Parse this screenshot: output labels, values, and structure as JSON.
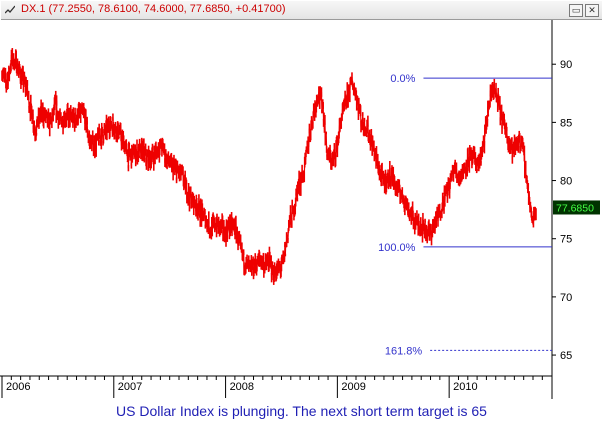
{
  "window": {
    "title": "DX.1 (77.2550, 78.6100, 74.6000, 77.6850, +0.41700)",
    "minimize_glyph": "▭",
    "close_glyph": "✕"
  },
  "caption": "US Dollar Index is plunging. The next short term target is 65",
  "colors": {
    "price": "#ee0000",
    "fib": "#3333cc",
    "fib_text": "#3333cc",
    "price_box": "#003300",
    "price_box_text": "#44ff44"
  },
  "chart_data": {
    "type": "line",
    "title": "",
    "xlabel": "",
    "ylabel": "",
    "ylim": [
      63.2,
      93.8
    ],
    "xlim": [
      2006.0,
      2010.92
    ],
    "y_ticks": [
      65,
      70,
      75,
      80,
      85,
      90
    ],
    "x_ticks": [
      {
        "value": 2006.0,
        "label": "2006"
      },
      {
        "value": 2007.0,
        "label": "2007"
      },
      {
        "value": 2008.0,
        "label": "2008"
      },
      {
        "value": 2009.0,
        "label": "2009"
      },
      {
        "value": 2010.0,
        "label": "2010"
      }
    ],
    "grid": false,
    "current_price": {
      "value": 77.685,
      "label": "77.6850"
    },
    "fib_levels": [
      {
        "label": "0.0%",
        "value": 88.8,
        "x_start": 2009.77,
        "style": "solid"
      },
      {
        "label": "100.0%",
        "value": 74.3,
        "x_start": 2009.77,
        "style": "solid"
      },
      {
        "label": "161.8%",
        "value": 65.4,
        "x_start": 2009.83,
        "style": "dashed"
      }
    ],
    "series": [
      {
        "x": [
          2006.0,
          2006.04,
          2006.09,
          2006.13,
          2006.17,
          2006.22,
          2006.26,
          2006.3,
          2006.35,
          2006.39,
          2006.43,
          2006.48,
          2006.52,
          2006.57,
          2006.61,
          2006.65,
          2006.7,
          2006.74,
          2006.78,
          2006.83,
          2006.87,
          2006.91,
          2006.96,
          2007.0,
          2007.04,
          2007.09,
          2007.13,
          2007.17,
          2007.22,
          2007.26,
          2007.3,
          2007.35,
          2007.39,
          2007.43,
          2007.48,
          2007.52,
          2007.57,
          2007.61,
          2007.65,
          2007.7,
          2007.74,
          2007.78,
          2007.83,
          2007.87,
          2007.91,
          2007.96,
          2008.0,
          2008.04,
          2008.09,
          2008.13,
          2008.17,
          2008.22,
          2008.26,
          2008.3,
          2008.35,
          2008.39,
          2008.43,
          2008.48,
          2008.52,
          2008.57,
          2008.61,
          2008.65,
          2008.7,
          2008.74,
          2008.78,
          2008.83,
          2008.87,
          2008.91,
          2008.96,
          2009.0,
          2009.04,
          2009.09,
          2009.13,
          2009.17,
          2009.22,
          2009.26,
          2009.3,
          2009.35,
          2009.39,
          2009.43,
          2009.48,
          2009.52,
          2009.57,
          2009.61,
          2009.65,
          2009.7,
          2009.74,
          2009.78,
          2009.83,
          2009.87,
          2009.91,
          2009.96,
          2010.0,
          2010.04,
          2010.09,
          2010.13,
          2010.17,
          2010.22,
          2010.26,
          2010.3,
          2010.35,
          2010.39,
          2010.43,
          2010.48,
          2010.52,
          2010.57,
          2010.61,
          2010.65,
          2010.7,
          2010.74,
          2010.78
        ],
        "y": [
          89.5,
          88.3,
          90.5,
          90.0,
          89.0,
          88.0,
          86.0,
          84.3,
          85.8,
          85.5,
          84.8,
          86.4,
          85.0,
          85.6,
          85.4,
          85.2,
          85.9,
          85.6,
          83.5,
          83.0,
          83.8,
          84.0,
          84.9,
          84.7,
          84.3,
          83.2,
          82.0,
          82.3,
          82.4,
          82.6,
          81.8,
          82.1,
          82.6,
          83.0,
          81.7,
          81.2,
          80.8,
          80.5,
          79.2,
          78.3,
          78.0,
          77.2,
          76.6,
          75.8,
          76.3,
          76.0,
          75.5,
          76.2,
          75.9,
          74.2,
          73.0,
          72.4,
          72.6,
          73.2,
          72.8,
          73.0,
          72.1,
          72.2,
          73.2,
          76.3,
          77.4,
          79.5,
          80.6,
          83.3,
          85.5,
          87.5,
          86.5,
          82.3,
          81.5,
          83.2,
          85.5,
          87.2,
          88.5,
          87.4,
          85.0,
          84.6,
          83.5,
          81.8,
          80.3,
          79.9,
          80.5,
          79.5,
          78.9,
          78.2,
          77.2,
          76.4,
          76.2,
          75.9,
          75.5,
          76.2,
          77.2,
          78.6,
          79.5,
          81.0,
          80.4,
          80.8,
          81.8,
          81.9,
          81.3,
          82.5,
          86.0,
          88.0,
          87.0,
          85.1,
          84.0,
          82.5,
          83.3,
          83.4,
          79.8,
          76.5,
          77.7
        ],
        "volatility": 0.9
      }
    ]
  }
}
